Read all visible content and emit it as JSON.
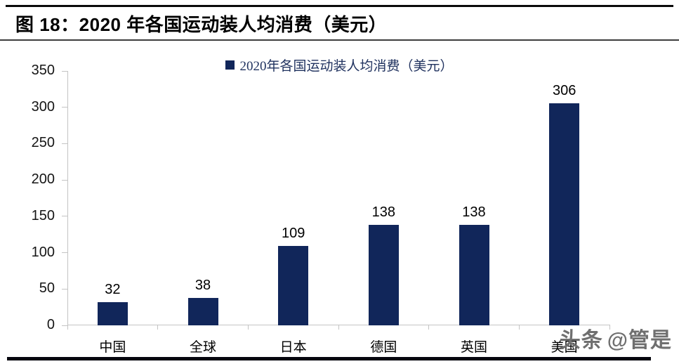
{
  "figure": {
    "title": "图 18：2020 年各国运动装人均消费（美元）"
  },
  "chart_data": {
    "type": "bar",
    "title": "图 18：2020 年各国运动装人均消费（美元）",
    "legend": [
      "2020年各国运动装人均消费（美元）"
    ],
    "legend_position": "top-center",
    "categories": [
      "中国",
      "全球",
      "日本",
      "德国",
      "英国",
      "美国"
    ],
    "values": [
      32,
      38,
      109,
      138,
      138,
      306
    ],
    "xlabel": "",
    "ylabel": "",
    "ylim": [
      0,
      350
    ],
    "ytick_step": 50,
    "yticks": [
      0,
      50,
      100,
      150,
      200,
      250,
      300,
      350
    ],
    "grid": false,
    "data_labels": true,
    "bar_color": "#11265a",
    "axis_color": "#c4c4c4"
  },
  "watermark": {
    "brand": "头条",
    "handle": "@管是"
  },
  "colors": {
    "bar": "#11265a",
    "axis": "#c4c4c4",
    "legend_text": "#20325f",
    "watermark": "#6f6f6f",
    "rule": "#0a0a0a"
  }
}
